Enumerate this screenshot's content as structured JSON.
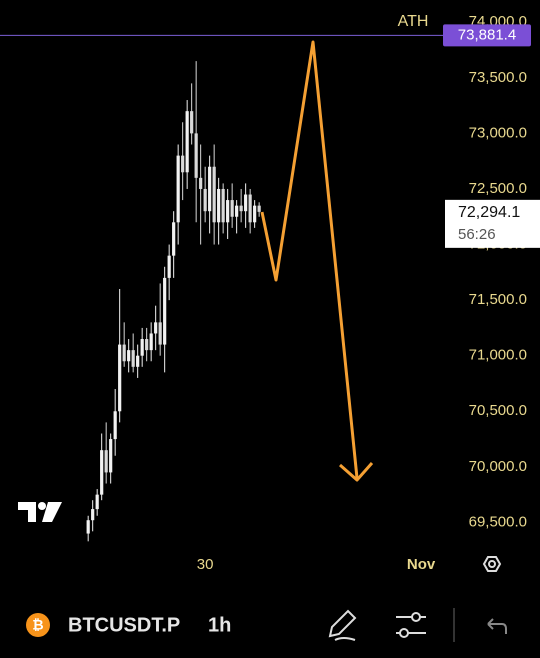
{
  "chart_data": {
    "type": "candlestick",
    "open": [
      69400,
      69520,
      69620,
      69750,
      70150,
      69950,
      70250,
      70500,
      71100,
      70950,
      71050,
      70900,
      71000,
      71150,
      71050,
      71200,
      71300,
      71100,
      71700,
      71900,
      72200,
      72800,
      72650,
      73200,
      73000,
      72600,
      72500,
      72300,
      72700,
      72200,
      72500,
      72200,
      72400,
      72250,
      72350,
      72300,
      72450,
      72200,
      72350
    ],
    "high": [
      69560,
      69700,
      69800,
      70300,
      70400,
      70300,
      70700,
      71600,
      71300,
      71150,
      71200,
      71100,
      71250,
      71250,
      71300,
      71450,
      71650,
      71800,
      72000,
      72300,
      72900,
      73100,
      73300,
      73450,
      73650,
      72900,
      72700,
      72800,
      72900,
      72600,
      72550,
      72500,
      72550,
      72400,
      72500,
      72550,
      72500,
      72400,
      72380
    ],
    "low": [
      69330,
      69420,
      69560,
      69700,
      69850,
      69850,
      70100,
      70400,
      70900,
      70850,
      70850,
      70800,
      70900,
      70950,
      70950,
      71050,
      71000,
      70850,
      71500,
      71700,
      72000,
      72400,
      72500,
      72900,
      72200,
      72000,
      72200,
      72100,
      72000,
      72000,
      72100,
      72050,
      72150,
      72100,
      72200,
      72150,
      72100,
      72150,
      72250
    ],
    "close": [
      69520,
      69620,
      69750,
      70150,
      69950,
      70250,
      70500,
      71100,
      70950,
      71050,
      70900,
      71000,
      71150,
      71050,
      71200,
      71300,
      71100,
      71700,
      71900,
      72200,
      72800,
      72650,
      73200,
      73000,
      72600,
      72500,
      72300,
      72700,
      72200,
      72500,
      72200,
      72400,
      72250,
      72350,
      72300,
      72450,
      72200,
      72350,
      72294.1
    ],
    "up_color": "#f2f2f2",
    "down_color": "#d9d9d9",
    "ylim": [
      69270,
      74200
    ],
    "yticks": [
      {
        "value": 69500,
        "label": "69,500.0"
      },
      {
        "value": 70000,
        "label": "70,000.0"
      },
      {
        "value": 70500,
        "label": "70,500.0"
      },
      {
        "value": 71000,
        "label": "71,000.0"
      },
      {
        "value": 71500,
        "label": "71,500.0"
      },
      {
        "value": 72000,
        "label": "72,000.0"
      },
      {
        "value": 72500,
        "label": "72,500.0"
      },
      {
        "value": 73000,
        "label": "73,000.0"
      },
      {
        "value": 73500,
        "label": "73,500.0"
      },
      {
        "value": 74000,
        "label": "74,000.0"
      }
    ],
    "xlim": [
      -19.6,
      78.2
    ],
    "xticks": [
      {
        "value": 26,
        "label": "30"
      },
      {
        "value": 74,
        "label": "Nov"
      }
    ],
    "ath_label": "ATH",
    "ath_price": {
      "value": 73881.4,
      "label": "73,881.4"
    },
    "last_price": {
      "value": 72294.1,
      "label": "72,294.1"
    },
    "countdown": "56:26"
  },
  "toolbar": {
    "symbol": "BTCUSDT.P",
    "interval": "1h"
  }
}
